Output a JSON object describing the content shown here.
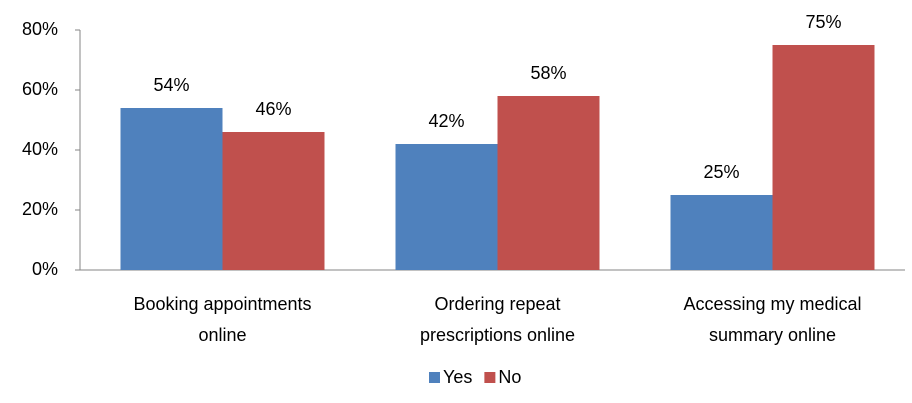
{
  "chart_data": {
    "type": "bar",
    "categories": [
      [
        "Booking appointments",
        "online"
      ],
      [
        "Ordering repeat",
        "prescriptions online"
      ],
      [
        "Accessing  my medical",
        "summary online"
      ]
    ],
    "series": [
      {
        "name": "Yes",
        "color": "#4f81bd",
        "values": [
          54,
          42,
          25
        ],
        "value_labels": [
          "54%",
          "42%",
          "25%"
        ]
      },
      {
        "name": "No",
        "color": "#c0504d",
        "values": [
          46,
          58,
          75
        ],
        "value_labels": [
          "46%",
          "58%",
          "75%"
        ]
      }
    ],
    "ylim": [
      0,
      80
    ],
    "yticks": [
      {
        "value": 0,
        "label": "0%"
      },
      {
        "value": 20,
        "label": "20%"
      },
      {
        "value": 40,
        "label": "40%"
      },
      {
        "value": 60,
        "label": "60%"
      },
      {
        "value": 80,
        "label": "80%"
      }
    ],
    "grid": false,
    "legend": "bottom"
  }
}
